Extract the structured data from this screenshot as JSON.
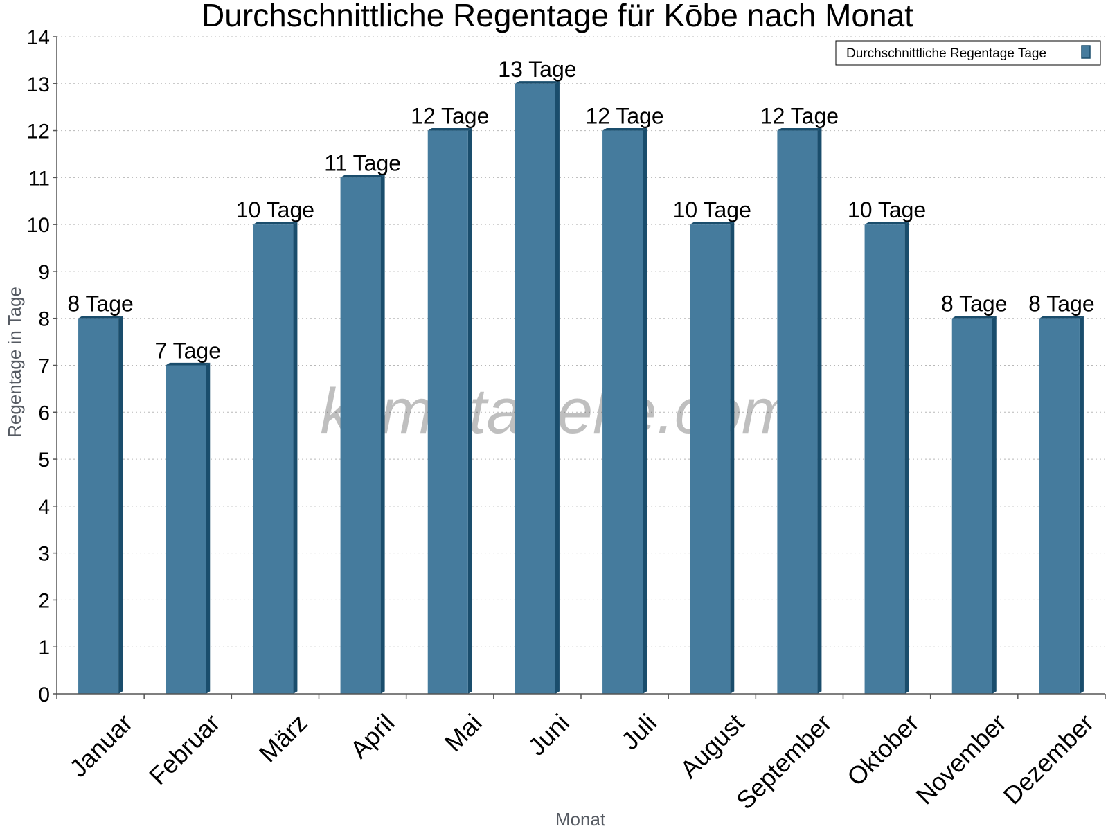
{
  "chart_data": {
    "type": "bar",
    "title": "Durchschnittliche Regentage für Kōbe nach Monat",
    "xlabel": "Monat",
    "ylabel": "Regentage in Tage",
    "ylim": [
      0,
      14
    ],
    "yticks": [
      0,
      1,
      2,
      3,
      4,
      5,
      6,
      7,
      8,
      9,
      10,
      11,
      12,
      13,
      14
    ],
    "grid": true,
    "legend_position": "top-right",
    "categories": [
      "Januar",
      "Februar",
      "März",
      "April",
      "Mai",
      "Juni",
      "Juli",
      "August",
      "September",
      "Oktober",
      "November",
      "Dezember"
    ],
    "series": [
      {
        "name": "Durchschnittliche Regentage Tage",
        "color": "#457b9d",
        "values": [
          8,
          7,
          10,
          11,
          12,
          13,
          12,
          10,
          12,
          10,
          8,
          8
        ],
        "data_labels": [
          "8 Tage",
          "7 Tage",
          "10 Tage",
          "11 Tage",
          "12 Tage",
          "13 Tage",
          "12 Tage",
          "10 Tage",
          "12 Tage",
          "10 Tage",
          "8 Tage",
          "8 Tage"
        ]
      }
    ],
    "watermark": "klimatabelle.com"
  }
}
